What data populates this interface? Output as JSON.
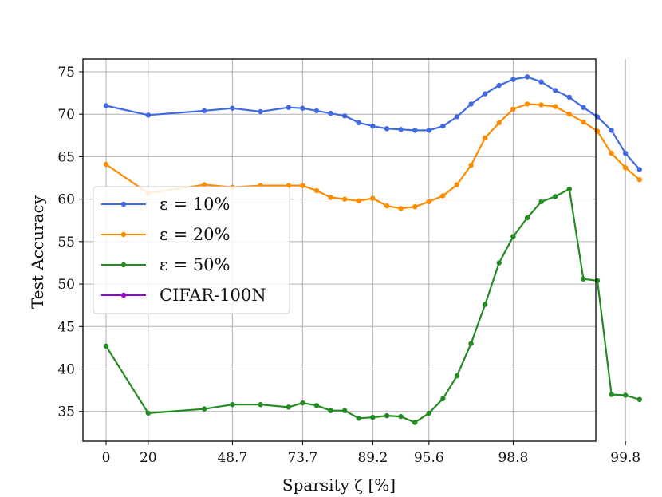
{
  "chart_data": {
    "type": "line",
    "title": "",
    "xlabel": "Sparsity ζ [%]",
    "ylabel": "Test Accuracy",
    "x_ticks": [
      {
        "index": 0,
        "label": "0"
      },
      {
        "index": 3,
        "label": "20"
      },
      {
        "index": 9,
        "label": "48.7"
      },
      {
        "index": 14,
        "label": "73.7"
      },
      {
        "index": 19,
        "label": "89.2"
      },
      {
        "index": 23,
        "label": "95.6"
      },
      {
        "index": 29,
        "label": "98.8"
      },
      {
        "index": 37,
        "label": "99.8"
      }
    ],
    "y_ticks": [
      35,
      40,
      45,
      50,
      55,
      60,
      65,
      70,
      75
    ],
    "ylim": [
      31.5,
      76.5
    ],
    "grid": true,
    "legend_position": "center-left",
    "series": [
      {
        "name": "ε = 10%",
        "color": "#4169e1",
        "points": [
          [
            0,
            71.0
          ],
          [
            3,
            69.9
          ],
          [
            7,
            70.4
          ],
          [
            9,
            70.7
          ],
          [
            11,
            70.3
          ],
          [
            13,
            70.8
          ],
          [
            14,
            70.7
          ],
          [
            15,
            70.4
          ],
          [
            16,
            70.1
          ],
          [
            17,
            69.8
          ],
          [
            18,
            69.0
          ],
          [
            19,
            68.6
          ],
          [
            20,
            68.3
          ],
          [
            21,
            68.2
          ],
          [
            22,
            68.1
          ],
          [
            23,
            68.1
          ],
          [
            24,
            68.6
          ],
          [
            25,
            69.7
          ],
          [
            26,
            71.2
          ],
          [
            27,
            72.4
          ],
          [
            28,
            73.4
          ],
          [
            29,
            74.1
          ],
          [
            30,
            74.4
          ],
          [
            31,
            73.8
          ],
          [
            32,
            72.8
          ],
          [
            33,
            72.0
          ],
          [
            34,
            70.8
          ],
          [
            35,
            69.7
          ],
          [
            36,
            68.1
          ],
          [
            37,
            65.4
          ],
          [
            38,
            63.5
          ]
        ]
      },
      {
        "name": "ε = 20%",
        "color": "#ff8c00",
        "points": [
          [
            0,
            64.1
          ],
          [
            3,
            60.7
          ],
          [
            7,
            61.7
          ],
          [
            9,
            61.4
          ],
          [
            11,
            61.6
          ],
          [
            13,
            61.6
          ],
          [
            14,
            61.6
          ],
          [
            15,
            61.0
          ],
          [
            16,
            60.2
          ],
          [
            17,
            60.0
          ],
          [
            18,
            59.8
          ],
          [
            19,
            60.1
          ],
          [
            20,
            59.2
          ],
          [
            21,
            58.9
          ],
          [
            22,
            59.1
          ],
          [
            23,
            59.7
          ],
          [
            24,
            60.4
          ],
          [
            25,
            61.7
          ],
          [
            26,
            64.0
          ],
          [
            27,
            67.2
          ],
          [
            28,
            69.0
          ],
          [
            29,
            70.6
          ],
          [
            30,
            71.2
          ],
          [
            31,
            71.1
          ],
          [
            32,
            70.9
          ],
          [
            33,
            70.0
          ],
          [
            34,
            69.1
          ],
          [
            35,
            68.0
          ],
          [
            36,
            65.4
          ],
          [
            37,
            63.7
          ],
          [
            38,
            62.3
          ]
        ]
      },
      {
        "name": "ε = 50%",
        "color": "#228b22",
        "points": [
          [
            0,
            42.7
          ],
          [
            3,
            34.8
          ],
          [
            7,
            35.3
          ],
          [
            9,
            35.8
          ],
          [
            11,
            35.8
          ],
          [
            13,
            35.5
          ],
          [
            14,
            36.0
          ],
          [
            15,
            35.7
          ],
          [
            16,
            35.1
          ],
          [
            17,
            35.1
          ],
          [
            18,
            34.2
          ],
          [
            19,
            34.3
          ],
          [
            20,
            34.5
          ],
          [
            21,
            34.4
          ],
          [
            22,
            33.7
          ],
          [
            23,
            34.8
          ],
          [
            24,
            36.5
          ],
          [
            25,
            39.2
          ],
          [
            26,
            43.0
          ],
          [
            27,
            47.6
          ],
          [
            28,
            52.5
          ],
          [
            29,
            55.6
          ],
          [
            30,
            57.8
          ],
          [
            31,
            59.7
          ],
          [
            32,
            60.3
          ],
          [
            33,
            61.2
          ],
          [
            34,
            50.6
          ],
          [
            35,
            50.4
          ],
          [
            36,
            37.0
          ],
          [
            37,
            36.9
          ],
          [
            38,
            36.4
          ]
        ]
      },
      {
        "name": "CIFAR-100N",
        "color": "#9400d3",
        "points": []
      }
    ]
  }
}
